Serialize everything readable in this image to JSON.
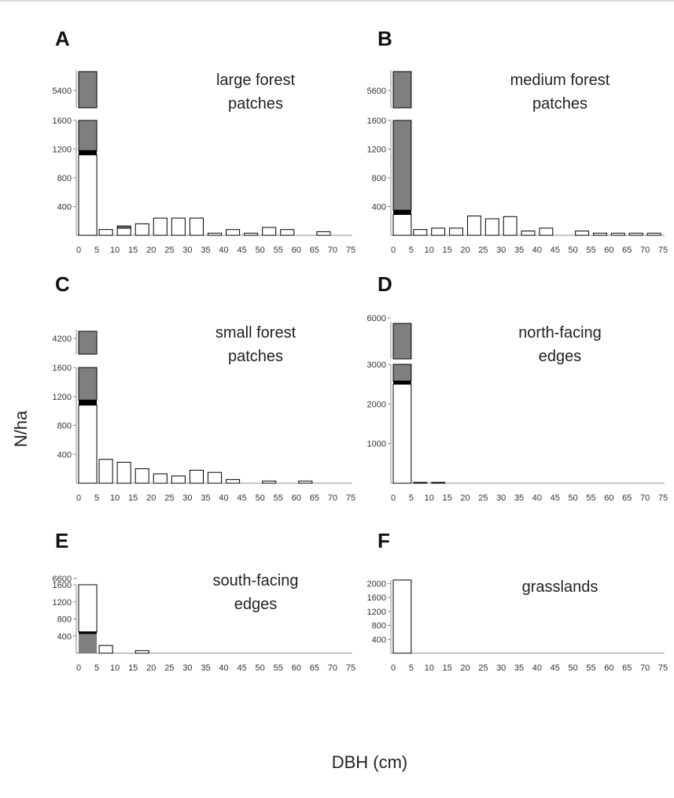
{
  "figure": {
    "ylabel": "N/ha",
    "xlabel": "DBH (cm)"
  },
  "colors": {
    "dead": "#7f7f7f",
    "live": "#ffffff",
    "marker": "#000000",
    "edge": "#000000"
  },
  "chart_data": [
    {
      "panel": "A",
      "title": [
        "large forest patches"
      ],
      "type": "bar",
      "x_ticks": [
        0,
        5,
        10,
        15,
        20,
        25,
        30,
        35,
        40,
        45,
        50,
        55,
        60,
        65,
        70,
        75
      ],
      "broken_y_axis": true,
      "lower_y_ticks": [
        400,
        800,
        1200,
        1600
      ],
      "upper_y_tick": 5400,
      "first_bar": {
        "total": 5400,
        "live": 1120,
        "black_band": [
          1120,
          1180
        ]
      },
      "values": [
        0,
        80,
        100,
        160,
        240,
        240,
        240,
        30,
        80,
        30,
        110,
        80,
        0,
        50,
        0
      ],
      "small_band": {
        "bin": 2,
        "range": [
          100,
          130
        ]
      }
    },
    {
      "panel": "B",
      "title": [
        "medium forest patches"
      ],
      "type": "bar",
      "x_ticks": [
        0,
        5,
        10,
        15,
        20,
        25,
        30,
        35,
        40,
        45,
        50,
        55,
        60,
        65,
        70,
        75
      ],
      "broken_y_axis": true,
      "lower_y_ticks": [
        400,
        800,
        1200,
        1600
      ],
      "upper_y_tick": 5600,
      "first_bar": {
        "total": 5600,
        "live": 290,
        "black_band": [
          290,
          350
        ]
      },
      "values": [
        0,
        80,
        100,
        100,
        270,
        230,
        260,
        60,
        100,
        0,
        60,
        30,
        30,
        30,
        30
      ]
    },
    {
      "panel": "C",
      "title": [
        "small forest patches"
      ],
      "type": "bar",
      "x_ticks": [
        0,
        5,
        10,
        15,
        20,
        25,
        30,
        35,
        40,
        45,
        50,
        55,
        60,
        65,
        70,
        75
      ],
      "broken_y_axis": true,
      "lower_y_ticks": [
        400,
        800,
        1200,
        1600
      ],
      "upper_y_tick": 4200,
      "first_bar": {
        "total": 4200,
        "live": 1080,
        "black_band": [
          1080,
          1150
        ]
      },
      "values": [
        0,
        330,
        290,
        200,
        130,
        100,
        180,
        150,
        50,
        0,
        30,
        0,
        30,
        0,
        0
      ]
    },
    {
      "panel": "D",
      "title": [
        "north-facing edges"
      ],
      "type": "bar",
      "x_ticks": [
        0,
        5,
        10,
        15,
        20,
        25,
        30,
        35,
        40,
        45,
        50,
        55,
        60,
        65,
        70,
        75
      ],
      "broken_y_axis": true,
      "lower_y_ticks": [
        1000,
        2000,
        3000
      ],
      "upper_y_tick": 6000,
      "first_bar": {
        "total": 5900,
        "live": 2500,
        "black_band": [
          2500,
          2580
        ]
      },
      "values": [
        0,
        20,
        20,
        0,
        0,
        0,
        0,
        0,
        0,
        0,
        0,
        0,
        0,
        0,
        0
      ]
    },
    {
      "panel": "E",
      "title": [
        "south-facing edges"
      ],
      "type": "bar",
      "x_ticks": [
        0,
        5,
        10,
        15,
        20,
        25,
        30,
        35,
        40,
        45,
        50,
        55,
        60,
        65,
        70,
        75
      ],
      "broken_y_axis": true,
      "lower_y_ticks": [
        400,
        800,
        1200,
        1600
      ],
      "upper_y_tick": 6600,
      "first_bar": {
        "total": 6600,
        "dead": 450,
        "black_band": [
          450,
          500
        ],
        "upper_filled": false
      },
      "values": [
        0,
        180,
        0,
        60,
        0,
        0,
        0,
        0,
        0,
        0,
        0,
        0,
        0,
        0,
        0
      ]
    },
    {
      "panel": "F",
      "title": [
        "grasslands"
      ],
      "type": "bar",
      "x_ticks": [
        0,
        5,
        10,
        15,
        20,
        25,
        30,
        35,
        40,
        45,
        50,
        55,
        60,
        65,
        70,
        75
      ],
      "broken_y_axis": false,
      "y_ticks": [
        400,
        800,
        1200,
        1600,
        2000
      ],
      "first_bar": {
        "total": 2100,
        "live": 2100
      },
      "values": [
        0,
        0,
        0,
        0,
        0,
        0,
        0,
        0,
        0,
        0,
        0,
        0,
        0,
        0,
        0
      ]
    }
  ]
}
